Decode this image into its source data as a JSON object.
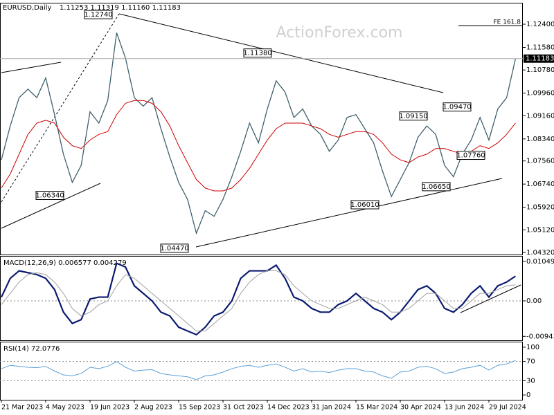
{
  "chart_data": [
    {
      "type": "line",
      "title": "EURUSD,Daily",
      "subtitle": "1.11253 1.11319 1.11160 1.11183",
      "watermark": "ActionForex.com",
      "ylim": [
        1.04247,
        1.13135
      ],
      "yticks": [
        {
          "value": 1.124,
          "label": "1.12400"
        },
        {
          "value": 1.1158,
          "label": "1.11580"
        },
        {
          "value": 1.1078,
          "label": "1.10780"
        },
        {
          "value": 1.0996,
          "label": "1.09960"
        },
        {
          "value": 1.0916,
          "label": "1.09160"
        },
        {
          "value": 1.0834,
          "label": "1.08340"
        },
        {
          "value": 1.0756,
          "label": "1.07560"
        },
        {
          "value": 1.0674,
          "label": "1.06740"
        },
        {
          "value": 1.0592,
          "label": "1.05920"
        },
        {
          "value": 1.0512,
          "label": "1.05120"
        },
        {
          "value": 1.0432,
          "label": "1.04320"
        }
      ],
      "series": [
        {
          "color": "#3f5f6b",
          "values": [
            1.076,
            1.088,
            1.098,
            1.101,
            1.098,
            1.105,
            1.092,
            1.078,
            1.068,
            1.074,
            1.093,
            1.089,
            1.097,
            1.121,
            1.112,
            1.098,
            1.095,
            1.098,
            1.087,
            1.077,
            1.068,
            1.062,
            1.05,
            1.058,
            1.056,
            1.062,
            1.07,
            1.079,
            1.089,
            1.082,
            1.094,
            1.104,
            1.1,
            1.091,
            1.094,
            1.088,
            1.085,
            1.079,
            1.083,
            1.091,
            1.092,
            1.087,
            1.082,
            1.072,
            1.063,
            1.069,
            1.075,
            1.084,
            1.088,
            1.085,
            1.074,
            1.07,
            1.078,
            1.083,
            1.091,
            1.083,
            1.094,
            1.098,
            1.11183
          ]
        },
        {
          "color": "#cc0000",
          "values": [
            1.066,
            1.071,
            1.078,
            1.085,
            1.089,
            1.09,
            1.089,
            1.084,
            1.081,
            1.08,
            1.083,
            1.085,
            1.086,
            1.092,
            1.096,
            1.097,
            1.097,
            1.096,
            1.093,
            1.088,
            1.081,
            1.075,
            1.069,
            1.066,
            1.065,
            1.065,
            1.066,
            1.069,
            1.073,
            1.078,
            1.083,
            1.087,
            1.089,
            1.089,
            1.089,
            1.088,
            1.087,
            1.085,
            1.084,
            1.085,
            1.086,
            1.086,
            1.085,
            1.082,
            1.078,
            1.076,
            1.075,
            1.077,
            1.078,
            1.08,
            1.08,
            1.079,
            1.078,
            1.079,
            1.081,
            1.08,
            1.082,
            1.085,
            1.089
          ]
        }
      ],
      "annotations": [
        {
          "value": 1.1274,
          "label": "1.12740"
        },
        {
          "value": 1.1138,
          "label": "1.11380"
        },
        {
          "value": 1.0915,
          "label": "1.09150"
        },
        {
          "value": 1.0947,
          "label": "1.09470"
        },
        {
          "value": 1.0776,
          "label": "1.07760"
        },
        {
          "value": 1.0665,
          "label": "1.06650"
        },
        {
          "value": 1.0601,
          "label": "1.06010"
        },
        {
          "value": 1.0447,
          "label": "1.04470"
        },
        {
          "value": 1.0634,
          "label": "1.06340"
        },
        {
          "value": 1.1235,
          "label": "FE 161.8"
        }
      ]
    },
    {
      "type": "line",
      "title": "MACD(12,26,9) 0.006577 0.004279",
      "ylim": [
        -0.01049,
        0.01178
      ],
      "yticks": [
        0.01049,
        {
          "value": 0,
          "label": "0.00"
        },
        -0.009435
      ],
      "series": [
        {
          "color": "#0a1a6e",
          "values": [
            0.001,
            0.006,
            0.008,
            0.0075,
            0.007,
            0.006,
            0.003,
            -0.003,
            -0.006,
            -0.005,
            0.0005,
            0.001,
            0.001,
            0.01,
            0.009,
            0.004,
            0.002,
            0.0,
            -0.003,
            -0.004,
            -0.007,
            -0.008,
            -0.009,
            -0.007,
            -0.004,
            -0.003,
            0.0,
            0.006,
            0.008,
            0.008,
            0.008,
            0.0095,
            0.006,
            0.001,
            0.0,
            -0.002,
            -0.003,
            -0.003,
            -0.001,
            0.0,
            0.002,
            0.0,
            -0.002,
            -0.003,
            -0.005,
            -0.003,
            0.0,
            0.003,
            0.004,
            0.002,
            -0.002,
            -0.003,
            -0.001,
            0.002,
            0.004,
            0.001,
            0.004,
            0.005,
            0.006577
          ]
        },
        {
          "color": "#a0a0a0",
          "values": [
            -0.001,
            0.002,
            0.005,
            0.007,
            0.0075,
            0.007,
            0.005,
            0.002,
            -0.002,
            -0.004,
            -0.003,
            -0.001,
            0.0,
            0.004,
            0.007,
            0.006,
            0.004,
            0.002,
            0.0,
            -0.002,
            -0.004,
            -0.006,
            -0.008,
            -0.008,
            -0.006,
            -0.004,
            -0.002,
            0.002,
            0.005,
            0.007,
            0.008,
            0.008,
            0.007,
            0.004,
            0.002,
            0.0,
            -0.001,
            -0.002,
            -0.002,
            -0.001,
            0.0,
            0.001,
            0.0,
            -0.001,
            -0.003,
            -0.003,
            -0.002,
            0.0,
            0.002,
            0.002,
            0.0,
            -0.002,
            -0.002,
            0.0,
            0.002,
            0.002,
            0.003,
            0.004,
            0.004279
          ]
        }
      ]
    },
    {
      "type": "line",
      "title": "RSI(14) 72.0776",
      "ylim": [
        -10,
        110
      ],
      "yticks": [
        100,
        70,
        30,
        0
      ],
      "dashed_levels": [
        70,
        30
      ],
      "series": [
        {
          "color": "#5aa0d8",
          "values": [
            55,
            62,
            60,
            58,
            57,
            60,
            50,
            42,
            40,
            45,
            58,
            55,
            60,
            70,
            58,
            50,
            52,
            53,
            45,
            42,
            40,
            38,
            32,
            40,
            42,
            48,
            55,
            60,
            62,
            58,
            62,
            65,
            58,
            50,
            55,
            48,
            50,
            47,
            52,
            55,
            55,
            50,
            48,
            40,
            35,
            48,
            50,
            58,
            60,
            55,
            45,
            48,
            55,
            58,
            62,
            52,
            62,
            65,
            72.0776
          ]
        }
      ],
      "categories": [
        "21 Mar 2023",
        null,
        null,
        null,
        null,
        "4 May 2023",
        null,
        null,
        null,
        null,
        "19 Jun 2023",
        null,
        null,
        null,
        null,
        "2 Aug 2023",
        null,
        null,
        null,
        null,
        "15 Sep 2023",
        null,
        null,
        null,
        null,
        "31 Oct 2023",
        null,
        null,
        null,
        null,
        "14 Dec 2023",
        null,
        null,
        null,
        null,
        "31 Jan 2024",
        null,
        null,
        null,
        null,
        "15 Mar 2024",
        null,
        null,
        null,
        null,
        "30 Apr 2024",
        null,
        null,
        null,
        null,
        "13 Jun 2024",
        null,
        null,
        null,
        null,
        "29 Jul 2024",
        null,
        null,
        null
      ]
    }
  ]
}
